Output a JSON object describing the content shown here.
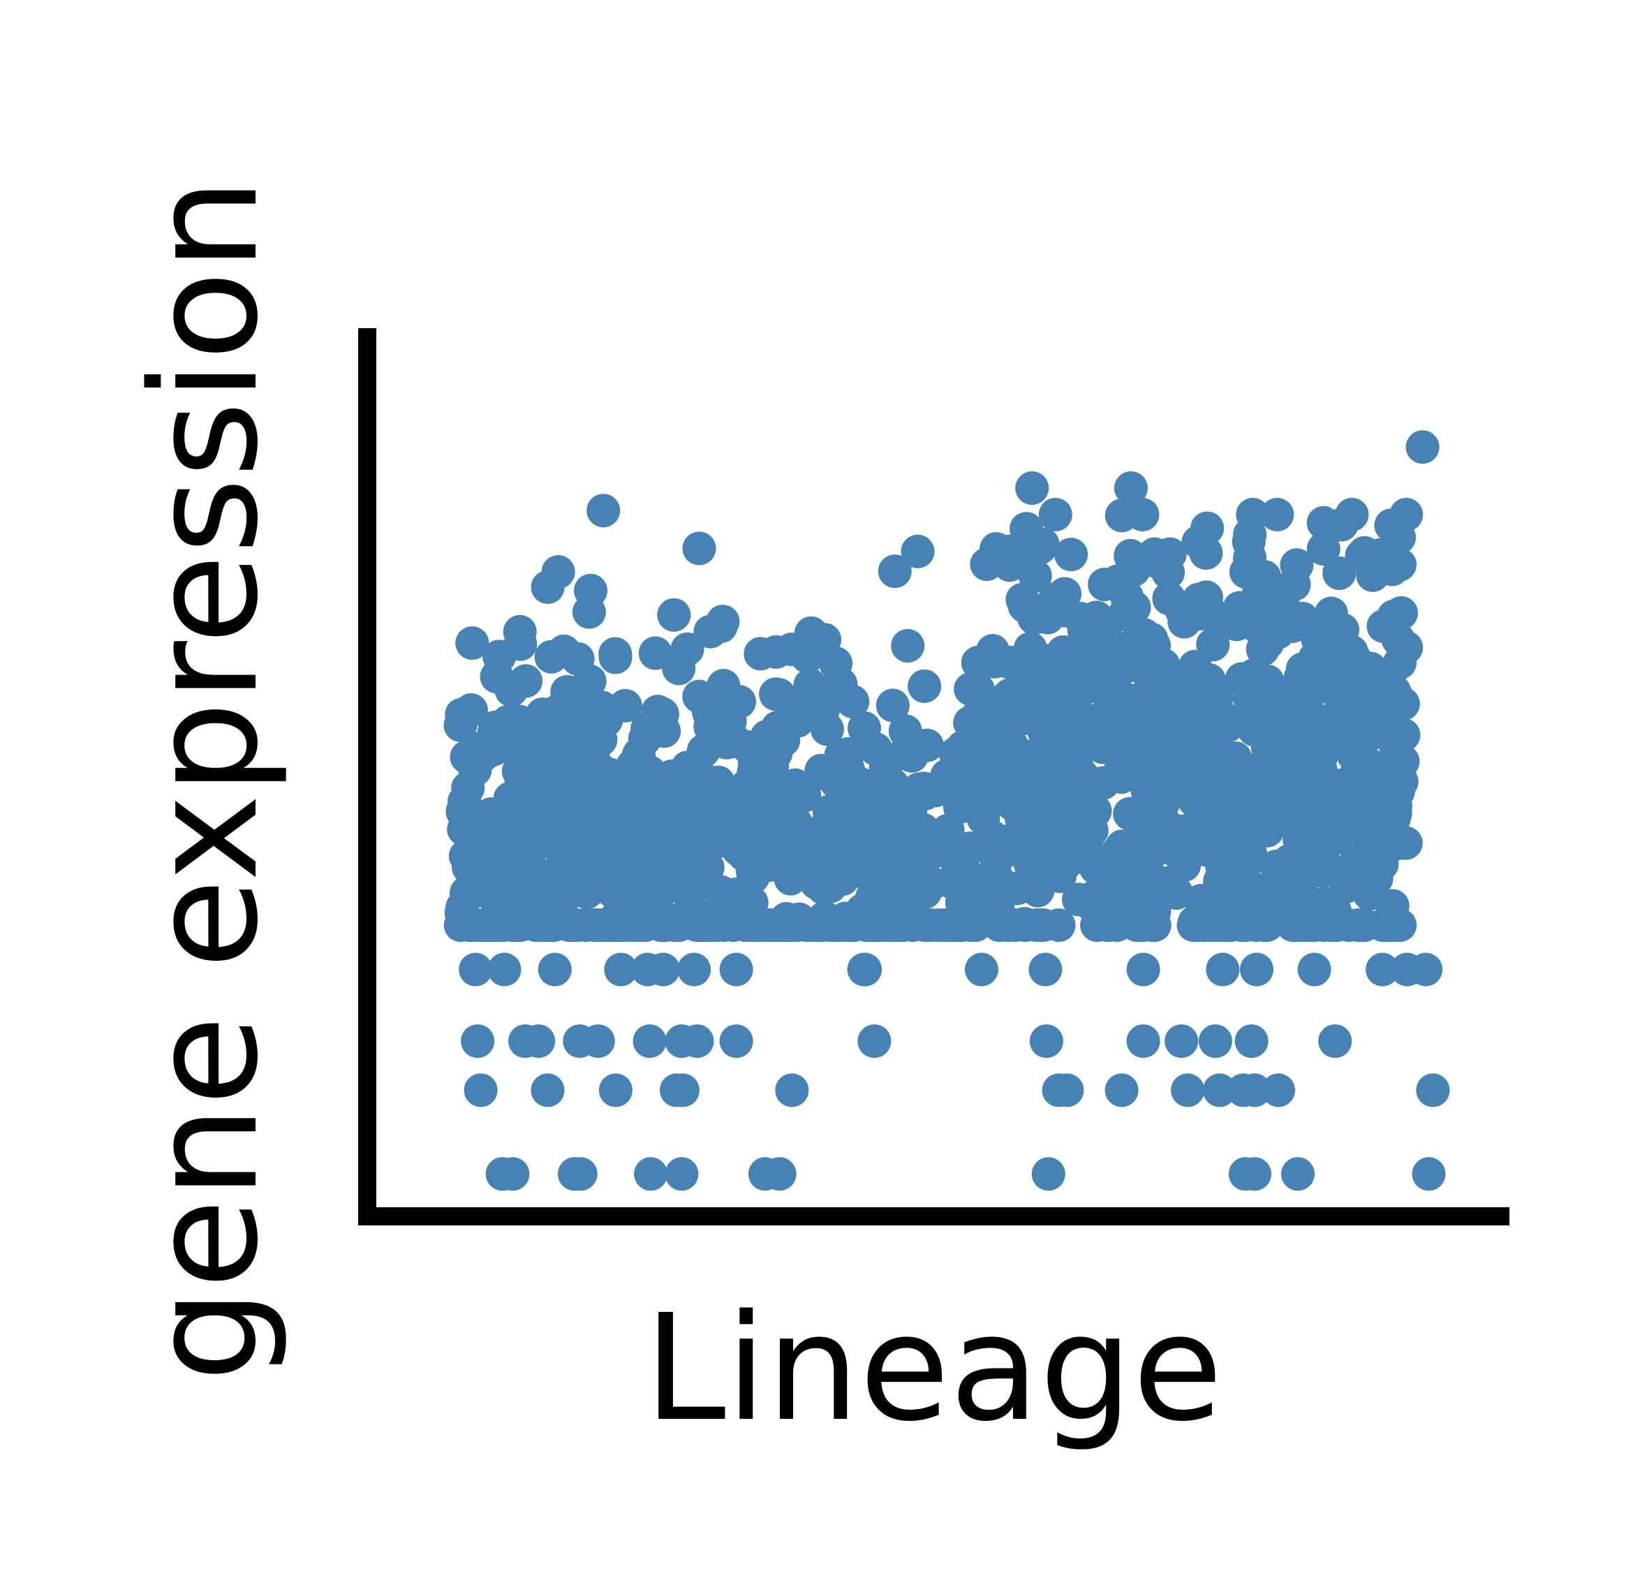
{
  "chart_data": {
    "type": "scatter",
    "xlabel": "Lineage",
    "ylabel": "gene expression",
    "grid": false,
    "legend": "none",
    "ticks": false,
    "xlim": [
      0,
      1
    ],
    "ylim": [
      0,
      1
    ],
    "point_color": "#4682b4",
    "axis_color": "#000000",
    "point_count": 1300,
    "bands": [
      {
        "x": [
          0.04,
          0.26
        ],
        "mean": 0.43,
        "sd": 0.135,
        "share": 0.24
      },
      {
        "x": [
          0.26,
          0.55
        ],
        "mean": 0.4,
        "sd": 0.13,
        "share": 0.26
      },
      {
        "x": [
          0.55,
          0.76
        ],
        "mean": 0.52,
        "sd": 0.14,
        "share": 0.25
      },
      {
        "x": [
          0.76,
          0.96
        ],
        "mean": 0.5,
        "sd": 0.15,
        "share": 0.25
      }
    ],
    "notable_points": [
      {
        "x": 0.974,
        "y": 0.914
      },
      {
        "x": 0.179,
        "y": 0.835
      },
      {
        "x": 0.272,
        "y": 0.788
      },
      {
        "x": 0.595,
        "y": 0.863
      },
      {
        "x": 0.691,
        "y": 0.863
      },
      {
        "x": 0.765,
        "y": 0.813
      }
    ],
    "low_rows": [
      {
        "y": 0.265,
        "x": [
          0.055,
          0.083,
          0.132,
          0.196,
          0.222,
          0.237,
          0.267,
          0.308,
          0.432,
          0.433,
          0.546,
          0.608,
          0.703,
          0.78,
          0.813,
          0.869,
          0.935,
          0.959,
          0.977
        ]
      },
      {
        "y": 0.176,
        "x": [
          0.057,
          0.103,
          0.116,
          0.156,
          0.174,
          0.224,
          0.255,
          0.27,
          0.308,
          0.442,
          0.609,
          0.703,
          0.74,
          0.773,
          0.808,
          0.889
        ]
      },
      {
        "x": [
          0.06,
          0.125,
          0.191,
          0.25,
          0.256,
          0.362,
          0.621,
          0.629,
          0.682,
          0.746,
          0.777,
          0.8,
          0.811,
          0.834,
          0.984
        ],
        "y": 0.115
      },
      {
        "x": [
          0.081,
          0.091,
          0.151,
          0.157,
          0.225,
          0.255,
          0.336,
          0.35,
          0.611,
          0.802,
          0.811,
          0.853,
          0.98
        ],
        "y": 0.011
      }
    ]
  }
}
